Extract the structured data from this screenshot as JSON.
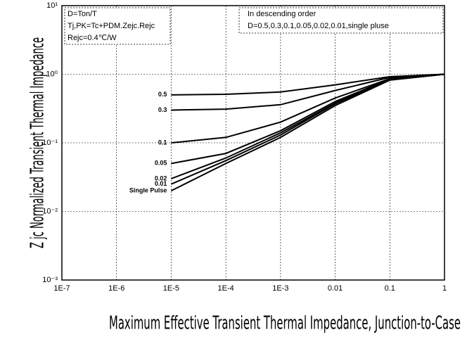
{
  "chart_data": {
    "type": "line",
    "x_label": "Maximum Effective Transient Thermal Impedance, Junction-to-Case",
    "y_label": "Z jc  Normalized Transient Thermal Impedance",
    "annotations": [
      "D=Ton/T",
      "Tj,PK=Tc+PDM.Zejc.Rejc",
      "Rejc=0.4℃/W",
      "In descending order",
      "D=0.5,0.3,0.1,0.05,0.02,0.01,single pluse"
    ],
    "x_log": true,
    "y_log": true,
    "grid": true,
    "xlim": [
      1e-07,
      1
    ],
    "xticks": [
      {
        "value": 1e-07,
        "label": "1E-7"
      },
      {
        "value": 1e-06,
        "label": "1E-6"
      },
      {
        "value": 1e-05,
        "label": "1E-5"
      },
      {
        "value": 0.0001,
        "label": "1E-4"
      },
      {
        "value": 0.001,
        "label": "1E-3"
      },
      0.01,
      0.1,
      1
    ],
    "ylim": [
      0.001,
      10
    ],
    "yticks": [
      {
        "value": 0.001,
        "label": "10⁻³"
      },
      {
        "value": 0.01,
        "label": "10⁻²"
      },
      {
        "value": 0.1,
        "label": "10⁻¹"
      },
      {
        "value": 1,
        "label": "10⁰"
      },
      {
        "value": 10,
        "label": "10¹"
      }
    ],
    "x": [
      1e-05,
      0.0001,
      0.001,
      0.01,
      0.1,
      1
    ],
    "series": [
      {
        "name": "0.5",
        "color": "#000000",
        "values": [
          0.5,
          0.51,
          0.55,
          0.7,
          0.92,
          1.0
        ]
      },
      {
        "name": "0.3",
        "color": "#000000",
        "values": [
          0.3,
          0.31,
          0.36,
          0.58,
          0.9,
          1.0
        ]
      },
      {
        "name": "0.1",
        "color": "#000000",
        "values": [
          0.1,
          0.12,
          0.2,
          0.45,
          0.86,
          1.0
        ]
      },
      {
        "name": "0.05",
        "color": "#000000",
        "values": [
          0.05,
          0.07,
          0.15,
          0.4,
          0.85,
          1.0
        ]
      },
      {
        "name": "0.02",
        "color": "#000000",
        "values": [
          0.03,
          0.06,
          0.14,
          0.38,
          0.84,
          1.0
        ]
      },
      {
        "name": "0.01",
        "color": "#000000",
        "values": [
          0.025,
          0.055,
          0.13,
          0.37,
          0.83,
          1.0
        ]
      },
      {
        "name": "Single Pulse",
        "color": "#000000",
        "values": [
          0.02,
          0.05,
          0.12,
          0.35,
          0.82,
          1.0
        ]
      }
    ]
  }
}
